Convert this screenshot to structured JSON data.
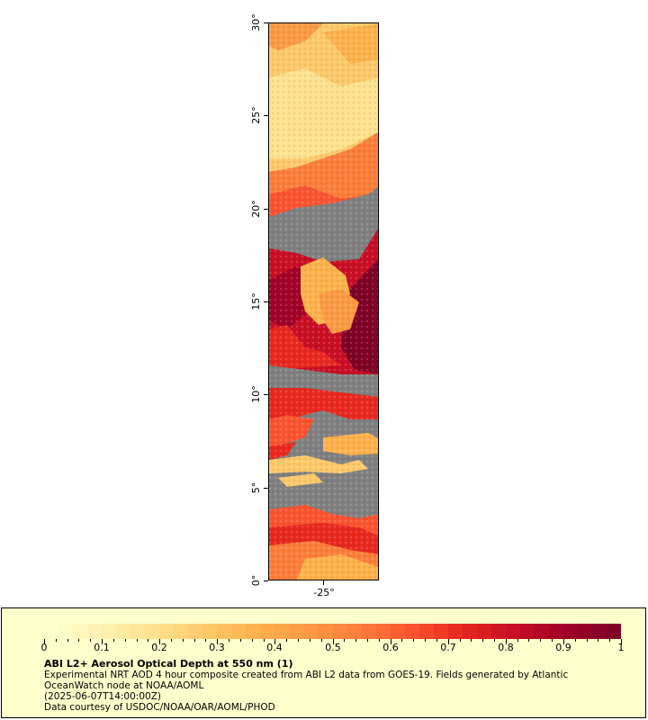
{
  "map": {
    "lat_labels": [
      "0°",
      "5°",
      "10°",
      "15°",
      "20°",
      "25°",
      "30°"
    ],
    "lon_labels": [
      "-25°"
    ],
    "lat_range": [
      0,
      30
    ],
    "lon_center": -25,
    "nodata_color": "#808080"
  },
  "legend": {
    "title": "ABI L2+ Aerosol Optical Depth at 550 nm (1)",
    "line1": "Experimental NRT AOD 4 hour composite created from ABI L2 data from GOES-19. Fields generated by Atlantic",
    "line2": "OceanWatch node at NOAA/AOML",
    "line3": "(2025-06-07T14:00:00Z)",
    "line4": "Data courtesy of USDOC/NOAA/OAR/AOML/PHOD",
    "tick_labels": [
      "0",
      "0.1",
      "0.2",
      "0.3",
      "0.4",
      "0.5",
      "0.6",
      "0.7",
      "0.8",
      "0.9",
      "1"
    ],
    "scale_min": 0,
    "scale_max": 1,
    "colors": [
      "#ffffcc",
      "#fff0b0",
      "#fee28f",
      "#fec96a",
      "#feb24c",
      "#fd9a44",
      "#fd7e3a",
      "#fc5430",
      "#e8291f",
      "#c90f25",
      "#a20026",
      "#800026"
    ],
    "background": "#ffffcc"
  }
}
